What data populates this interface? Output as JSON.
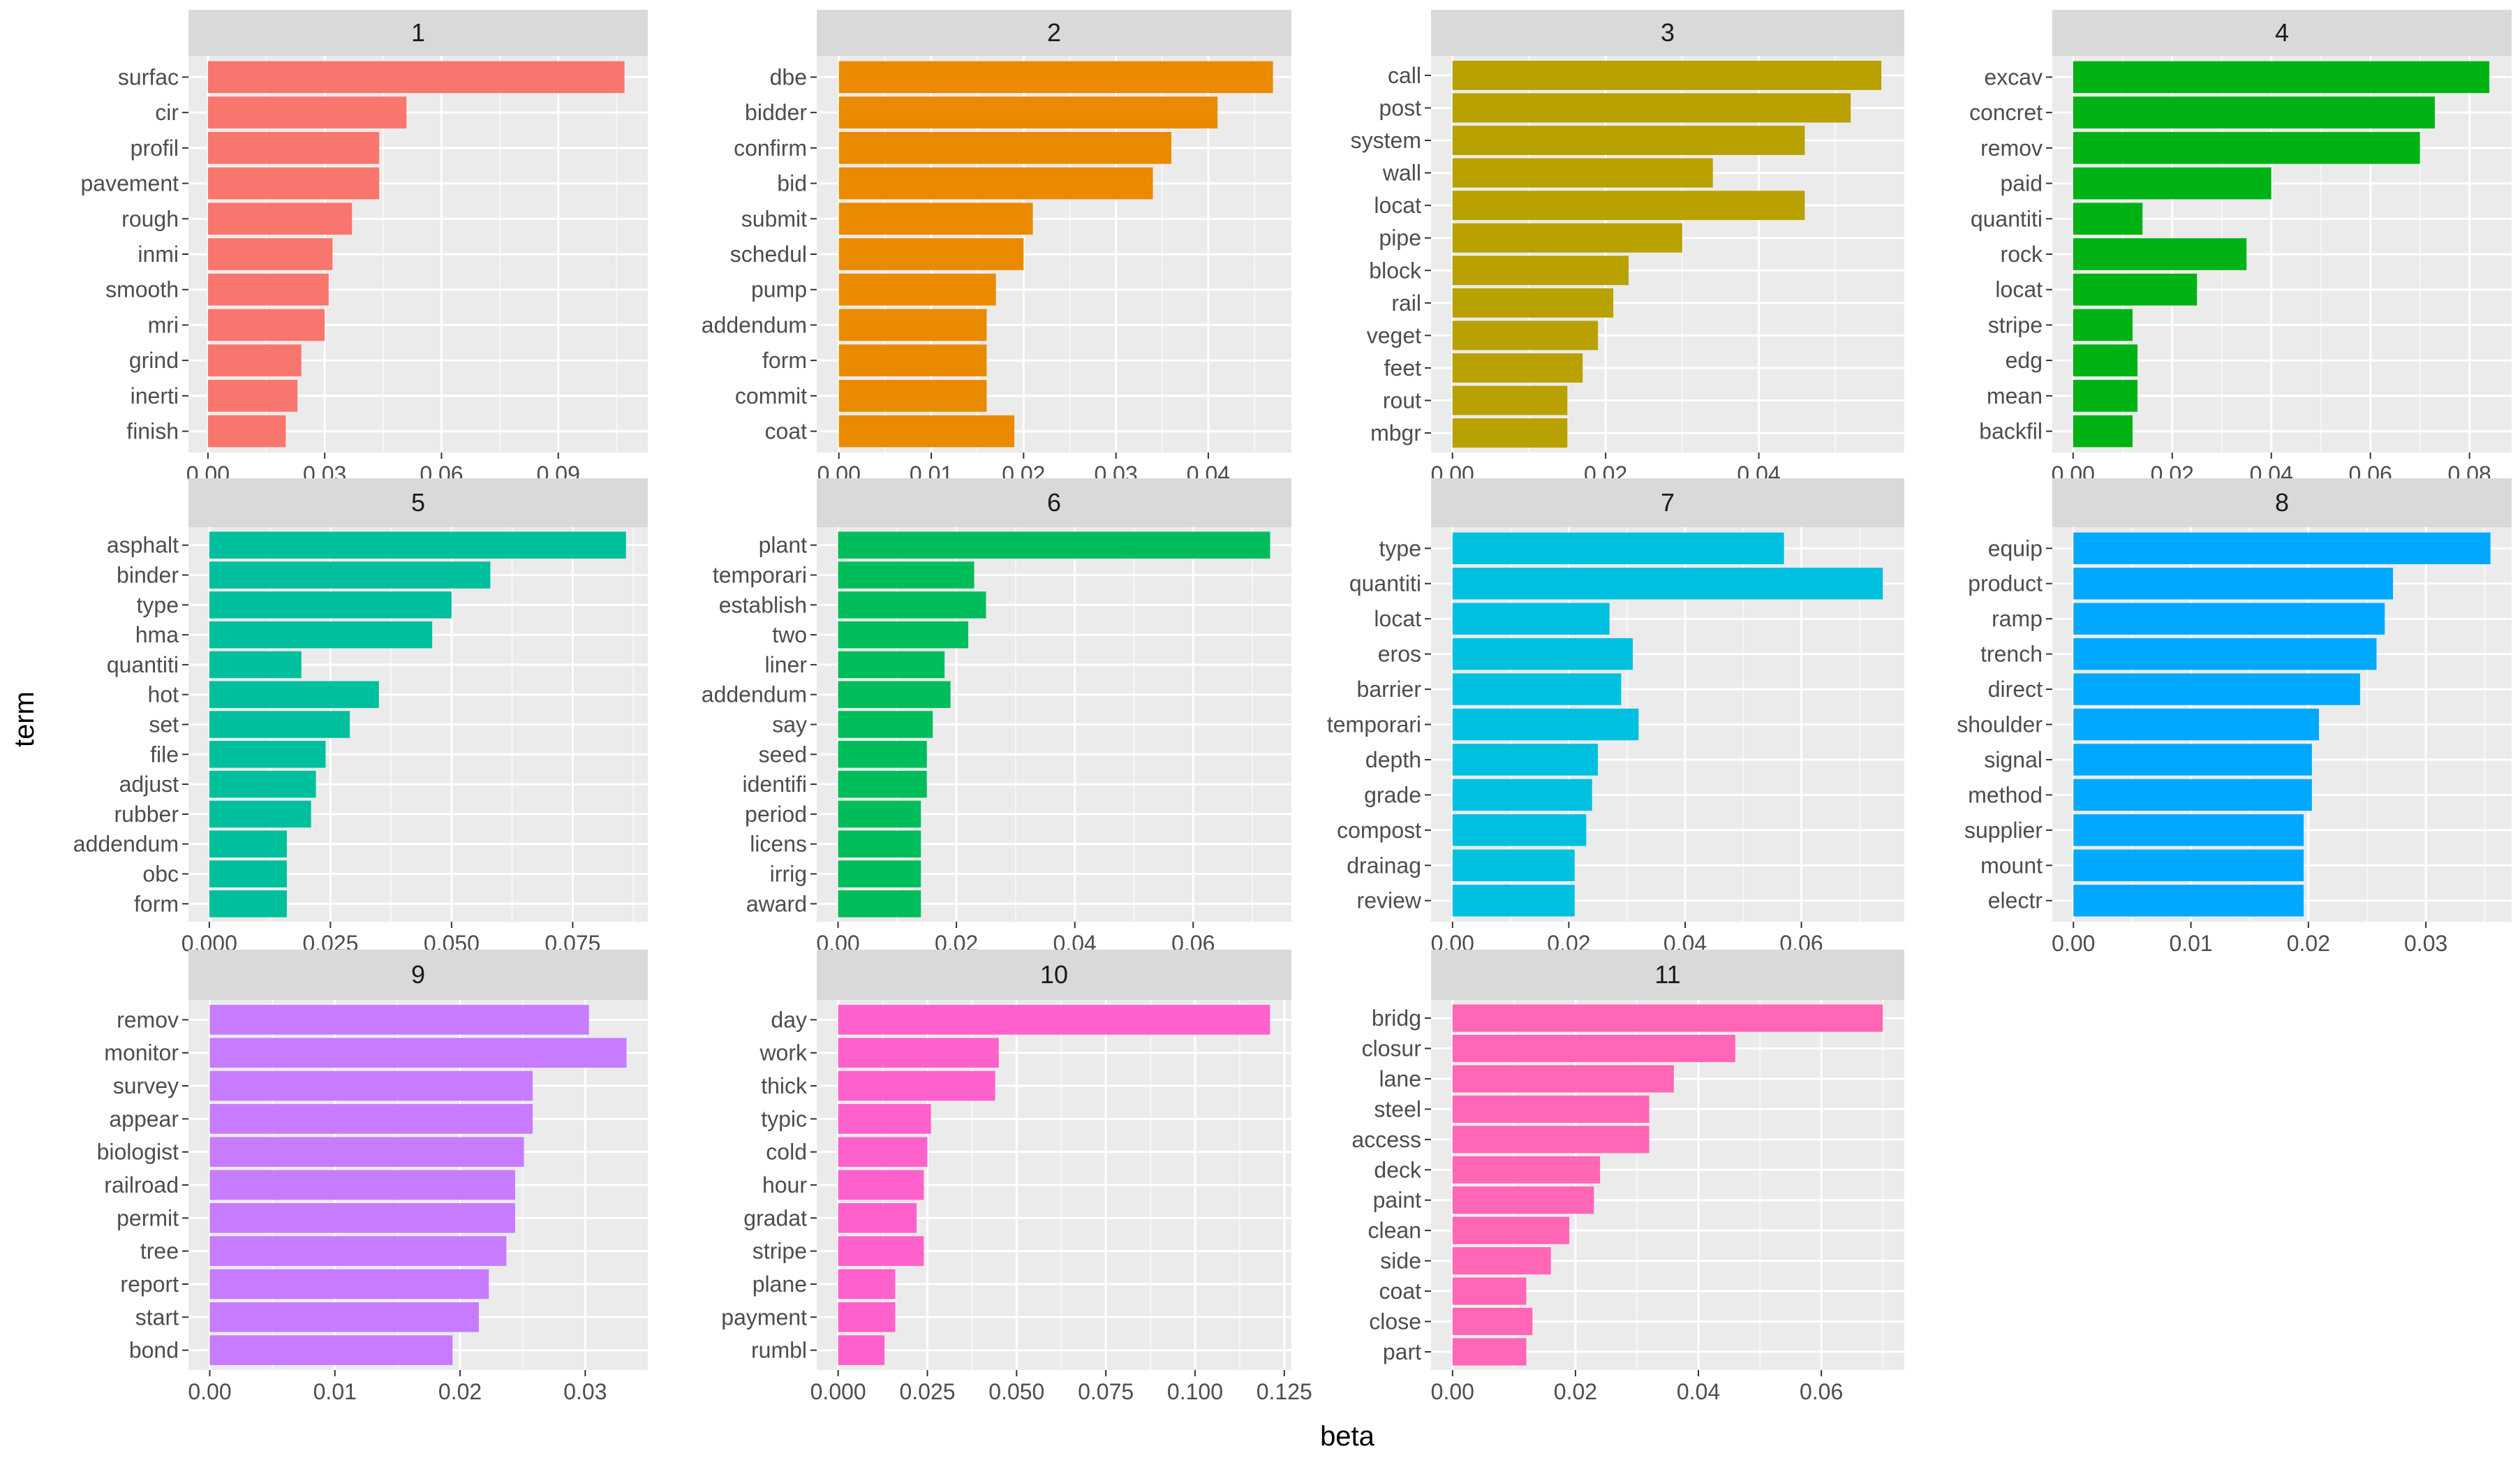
{
  "chart_data": {
    "type": "bar",
    "orientation": "horizontal",
    "layout": "facet_wrap",
    "xlabel": "beta",
    "ylabel": "term",
    "grid": true,
    "facets": [
      {
        "title": "1",
        "color": "#F8766D",
        "terms": [
          "surfac",
          "cir",
          "profil",
          "pavement",
          "rough",
          "inmi",
          "smooth",
          "mri",
          "grind",
          "inerti",
          "finish"
        ],
        "values": [
          0.107,
          0.051,
          0.044,
          0.044,
          0.037,
          0.032,
          0.031,
          0.03,
          0.024,
          0.023,
          0.02
        ],
        "xlim": [
          -0.005,
          0.113
        ],
        "ticks": [
          0,
          0.03,
          0.06,
          0.09
        ],
        "tick_labels": [
          "0.00",
          "0.03",
          "0.06",
          "0.09"
        ]
      },
      {
        "title": "2",
        "color": "#EA8A00",
        "terms": [
          "dbe",
          "bidder",
          "confirm",
          "bid",
          "submit",
          "schedul",
          "pump",
          "addendum",
          "form",
          "commit",
          "coat"
        ],
        "values": [
          0.047,
          0.041,
          0.036,
          0.034,
          0.021,
          0.02,
          0.017,
          0.016,
          0.016,
          0.016,
          0.019
        ],
        "xlim": [
          -0.0024,
          0.049
        ],
        "ticks": [
          0,
          0.01,
          0.02,
          0.03,
          0.04
        ],
        "tick_labels": [
          "0.00",
          "0.01",
          "0.02",
          "0.03",
          "0.04"
        ]
      },
      {
        "title": "3",
        "color": "#B8A100",
        "terms": [
          "call",
          "post",
          "system",
          "wall",
          "locat",
          "pipe",
          "block",
          "rail",
          "veget",
          "feet",
          "rout",
          "mbgr"
        ],
        "values": [
          0.056,
          0.052,
          0.046,
          0.034,
          0.046,
          0.03,
          0.023,
          0.021,
          0.019,
          0.017,
          0.015,
          0.015
        ],
        "xlim": [
          -0.0028,
          0.059
        ],
        "ticks": [
          0,
          0.02,
          0.04
        ],
        "tick_labels": [
          "0.00",
          "0.02",
          "0.04"
        ]
      },
      {
        "title": "4",
        "color": "#00B214",
        "terms": [
          "excav",
          "concret",
          "remov",
          "paid",
          "quantiti",
          "rock",
          "locat",
          "stripe",
          "edg",
          "mean",
          "backfil"
        ],
        "values": [
          0.084,
          0.073,
          0.07,
          0.04,
          0.014,
          0.035,
          0.025,
          0.012,
          0.013,
          0.013,
          0.012
        ],
        "xlim": [
          -0.0042,
          0.0885
        ],
        "ticks": [
          0,
          0.02,
          0.04,
          0.06,
          0.08
        ],
        "tick_labels": [
          "0.00",
          "0.02",
          "0.04",
          "0.06",
          "0.08"
        ]
      },
      {
        "title": "5",
        "color": "#00BF9D",
        "terms": [
          "asphalt",
          "binder",
          "type",
          "hma",
          "quantiti",
          "hot",
          "set",
          "file",
          "adjust",
          "rubber",
          "addendum",
          "obc",
          "form"
        ],
        "values": [
          0.086,
          0.058,
          0.05,
          0.046,
          0.019,
          0.035,
          0.029,
          0.024,
          0.022,
          0.021,
          0.016,
          0.016,
          0.016
        ],
        "xlim": [
          -0.0043,
          0.0905
        ],
        "ticks": [
          0,
          0.025,
          0.05,
          0.075
        ],
        "tick_labels": [
          "0.000",
          "0.025",
          "0.050",
          "0.075"
        ]
      },
      {
        "title": "6",
        "color": "#00BD5C",
        "terms": [
          "plant",
          "temporari",
          "establish",
          "two",
          "liner",
          "addendum",
          "say",
          "seed",
          "identifi",
          "period",
          "licens",
          "irrig",
          "award"
        ],
        "values": [
          0.073,
          0.023,
          0.025,
          0.022,
          0.018,
          0.019,
          0.016,
          0.015,
          0.015,
          0.014,
          0.014,
          0.014,
          0.014
        ],
        "xlim": [
          -0.0036,
          0.0766
        ],
        "ticks": [
          0,
          0.02,
          0.04,
          0.06
        ],
        "tick_labels": [
          "0.00",
          "0.02",
          "0.04",
          "0.06"
        ]
      },
      {
        "title": "7",
        "color": "#00C0E0",
        "terms": [
          "type",
          "quantiti",
          "locat",
          "eros",
          "barrier",
          "temporari",
          "depth",
          "grade",
          "compost",
          "drainag",
          "review"
        ],
        "values": [
          0.057,
          0.074,
          0.027,
          0.031,
          0.029,
          0.032,
          0.025,
          0.024,
          0.023,
          0.021,
          0.021
        ],
        "xlim": [
          -0.0037,
          0.0777
        ],
        "ticks": [
          0,
          0.02,
          0.04,
          0.06
        ],
        "tick_labels": [
          "0.00",
          "0.02",
          "0.04",
          "0.06"
        ]
      },
      {
        "title": "8",
        "color": "#00A9FF",
        "terms": [
          "equip",
          "product",
          "ramp",
          "trench",
          "direct",
          "shoulder",
          "signal",
          "method",
          "supplier",
          "mount",
          "electr"
        ],
        "values": [
          0.0355,
          0.0272,
          0.0265,
          0.0258,
          0.0244,
          0.0209,
          0.0203,
          0.0203,
          0.0196,
          0.0196,
          0.0196
        ],
        "xlim": [
          -0.0018,
          0.0373
        ],
        "ticks": [
          0,
          0.01,
          0.02,
          0.03
        ],
        "tick_labels": [
          "0.00",
          "0.01",
          "0.02",
          "0.03"
        ]
      },
      {
        "title": "9",
        "color": "#C77CFF",
        "terms": [
          "remov",
          "monitor",
          "survey",
          "appear",
          "biologist",
          "railroad",
          "permit",
          "tree",
          "report",
          "start",
          "bond"
        ],
        "values": [
          0.0303,
          0.0333,
          0.0258,
          0.0258,
          0.0251,
          0.0244,
          0.0244,
          0.0237,
          0.0223,
          0.0215,
          0.0194
        ],
        "xlim": [
          -0.0017,
          0.035
        ],
        "ticks": [
          0,
          0.01,
          0.02,
          0.03
        ],
        "tick_labels": [
          "0.00",
          "0.01",
          "0.02",
          "0.03"
        ]
      },
      {
        "title": "10",
        "color": "#FF61CC",
        "terms": [
          "day",
          "work",
          "thick",
          "typic",
          "cold",
          "hour",
          "gradat",
          "stripe",
          "plane",
          "payment",
          "rumbl"
        ],
        "values": [
          0.121,
          0.045,
          0.044,
          0.026,
          0.025,
          0.024,
          0.022,
          0.024,
          0.016,
          0.016,
          0.013
        ],
        "xlim": [
          -0.006,
          0.127
        ],
        "ticks": [
          0,
          0.025,
          0.05,
          0.075,
          0.1,
          0.125
        ],
        "tick_labels": [
          "0.000",
          "0.025",
          "0.050",
          "0.075",
          "0.100",
          "0.125"
        ]
      },
      {
        "title": "11",
        "color": "#FF66B6",
        "terms": [
          "bridg",
          "closur",
          "lane",
          "steel",
          "access",
          "deck",
          "paint",
          "clean",
          "side",
          "coat",
          "close",
          "part"
        ],
        "values": [
          0.07,
          0.046,
          0.036,
          0.032,
          0.032,
          0.024,
          0.023,
          0.019,
          0.016,
          0.012,
          0.013,
          0.012
        ],
        "xlim": [
          -0.0035,
          0.0735
        ],
        "ticks": [
          0,
          0.02,
          0.04,
          0.06
        ],
        "tick_labels": [
          "0.00",
          "0.02",
          "0.04",
          "0.06"
        ]
      }
    ]
  }
}
